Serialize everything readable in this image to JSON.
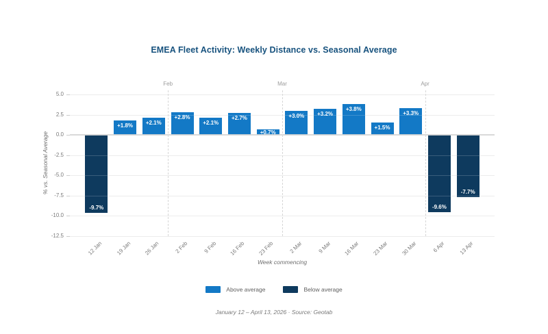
{
  "colors": {
    "above": "#1379c6",
    "below": "#0e3a5e",
    "title": "#17527e",
    "gridline": "#e8e8e8",
    "zero_line": "#d6d6d6",
    "tick_text": "#7a7a7a"
  },
  "chart_data": {
    "type": "bar",
    "title": "EMEA Fleet Activity: Weekly Distance vs. Seasonal Average",
    "xlabel": "Week commencing",
    "ylabel": "% vs. Seasonal Average",
    "source_note": "January 12 – April 13, 2026  ·  Source: Geotab",
    "categories": [
      "12 Jan",
      "19 Jan",
      "26 Jan",
      "2 Feb",
      "9 Feb",
      "16 Feb",
      "23 Feb",
      "2 Mar",
      "9 Mar",
      "16 Mar",
      "23 Mar",
      "30 Mar",
      "6 Apr",
      "13 Apr"
    ],
    "values": [
      -9.7,
      1.8,
      2.1,
      2.8,
      2.1,
      2.7,
      0.7,
      3.0,
      3.2,
      3.8,
      1.5,
      3.3,
      -9.6,
      -7.7
    ],
    "bar_labels": [
      "-9.7%",
      "+1.8%",
      "+2.1%",
      "+2.8%",
      "+2.1%",
      "+2.7%",
      "+0.7%",
      "+3.0%",
      "+3.2%",
      "+3.8%",
      "+1.5%",
      "+3.3%",
      "-9.6%",
      "-7.7%"
    ],
    "yticks": [
      5.0,
      2.5,
      0.0,
      -2.5,
      -5.0,
      -7.5,
      -10.0,
      -12.5
    ],
    "ytick_labels": [
      "5.0",
      "2.5",
      "0.0",
      "-2.5",
      "-5.0",
      "-7.5",
      "-10.0",
      "-12.5"
    ],
    "ylim": [
      -12.5,
      5.5
    ],
    "grid": true,
    "month_markers": [
      {
        "label": "Feb",
        "boundary_after_index": 2
      },
      {
        "label": "Mar",
        "boundary_after_index": 6
      },
      {
        "label": "Apr",
        "boundary_after_index": 11
      }
    ],
    "legend_position": "bottom",
    "legend": [
      {
        "label": "Above average",
        "color": "#1379c6"
      },
      {
        "label": "Below average",
        "color": "#0e3a5e"
      }
    ]
  }
}
